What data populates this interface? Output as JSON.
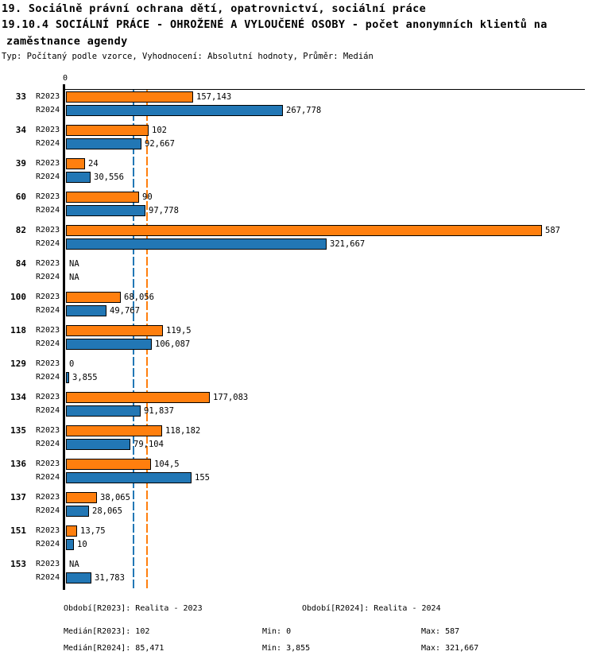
{
  "header": {
    "line1": "19. Sociálně právní ochrana dětí, opatrovnictví, sociální práce",
    "line2": "19.10.4 SOCIÁLNÍ PRÁCE - OHROŽENÉ A VYLOUČENÉ OSOBY - počet anonymních klientů na",
    "line3": "zaměstnance agendy",
    "meta": "Typ: Počítaný podle vzorce, Vyhodnocení: Absolutní hodnoty, Průměr: Medián"
  },
  "chart_data": {
    "type": "bar",
    "orientation": "horizontal",
    "title": "19.10.4 SOCIÁLNÍ PRÁCE - OHROŽENÉ A VYLOUČENÉ OSOBY - počet anonymních klientů na zaměstnance agendy",
    "axis_zero_label": "0",
    "xlim": [
      0,
      643
    ],
    "grid": false,
    "legend_position": "none",
    "series_names": [
      "R2023",
      "R2024"
    ],
    "colors": {
      "R2023": "#ff7f0e",
      "R2024": "#2277b5",
      "bar_border": "#000000"
    },
    "reference_lines": [
      {
        "name": "median-R2024",
        "value": 85.471,
        "color": "#2277b5",
        "style": "dashed"
      },
      {
        "name": "median-R2023",
        "value": 102,
        "color": "#ff7f0e",
        "style": "dashed"
      }
    ],
    "categories": [
      "33",
      "34",
      "39",
      "60",
      "82",
      "84",
      "100",
      "118",
      "129",
      "134",
      "135",
      "136",
      "137",
      "151",
      "153"
    ],
    "rows": [
      {
        "category": "33",
        "bars": [
          {
            "series": "R2023",
            "label": "157,143",
            "value": 157.143
          },
          {
            "series": "R2024",
            "label": "267,778",
            "value": 267.778
          }
        ]
      },
      {
        "category": "34",
        "bars": [
          {
            "series": "R2023",
            "label": "102",
            "value": 102
          },
          {
            "series": "R2024",
            "label": "92,667",
            "value": 92.667
          }
        ]
      },
      {
        "category": "39",
        "bars": [
          {
            "series": "R2023",
            "label": "24",
            "value": 24
          },
          {
            "series": "R2024",
            "label": "30,556",
            "value": 30.556
          }
        ]
      },
      {
        "category": "60",
        "bars": [
          {
            "series": "R2023",
            "label": "90",
            "value": 90
          },
          {
            "series": "R2024",
            "label": "97,778",
            "value": 97.778
          }
        ]
      },
      {
        "category": "82",
        "bars": [
          {
            "series": "R2023",
            "label": "587",
            "value": 587
          },
          {
            "series": "R2024",
            "label": "321,667",
            "value": 321.667
          }
        ]
      },
      {
        "category": "84",
        "bars": [
          {
            "series": "R2023",
            "label": "NA",
            "value": null
          },
          {
            "series": "R2024",
            "label": "NA",
            "value": null
          }
        ]
      },
      {
        "category": "100",
        "bars": [
          {
            "series": "R2023",
            "label": "68,056",
            "value": 68.056
          },
          {
            "series": "R2024",
            "label": "49,767",
            "value": 49.767
          }
        ]
      },
      {
        "category": "118",
        "bars": [
          {
            "series": "R2023",
            "label": "119,5",
            "value": 119.5
          },
          {
            "series": "R2024",
            "label": "106,087",
            "value": 106.087
          }
        ]
      },
      {
        "category": "129",
        "bars": [
          {
            "series": "R2023",
            "label": "0",
            "value": 0
          },
          {
            "series": "R2024",
            "label": "3,855",
            "value": 3.855
          }
        ]
      },
      {
        "category": "134",
        "bars": [
          {
            "series": "R2023",
            "label": "177,083",
            "value": 177.083
          },
          {
            "series": "R2024",
            "label": "91,837",
            "value": 91.837
          }
        ]
      },
      {
        "category": "135",
        "bars": [
          {
            "series": "R2023",
            "label": "118,182",
            "value": 118.182
          },
          {
            "series": "R2024",
            "label": "79,104",
            "value": 79.104
          }
        ]
      },
      {
        "category": "136",
        "bars": [
          {
            "series": "R2023",
            "label": "104,5",
            "value": 104.5
          },
          {
            "series": "R2024",
            "label": "155",
            "value": 155
          }
        ]
      },
      {
        "category": "137",
        "bars": [
          {
            "series": "R2023",
            "label": "38,065",
            "value": 38.065
          },
          {
            "series": "R2024",
            "label": "28,065",
            "value": 28.065
          }
        ]
      },
      {
        "category": "151",
        "bars": [
          {
            "series": "R2023",
            "label": "13,75",
            "value": 13.75
          },
          {
            "series": "R2024",
            "label": "10",
            "value": 10
          }
        ]
      },
      {
        "category": "153",
        "bars": [
          {
            "series": "R2023",
            "label": "NA",
            "value": null
          },
          {
            "series": "R2024",
            "label": "31,783",
            "value": 31.783
          }
        ]
      }
    ]
  },
  "footer": {
    "obdobi_r2023": "Období[R2023]: Realita - 2023",
    "obdobi_r2024": "Období[R2024]: Realita - 2024",
    "median_r2023": "Medián[R2023]: 102",
    "median_r2024": "Medián[R2024]: 85,471",
    "min_r2023": "Min: 0",
    "min_r2024": "Min: 3,855",
    "max_r2023": "Max: 587",
    "max_r2024": "Max: 321,667"
  }
}
